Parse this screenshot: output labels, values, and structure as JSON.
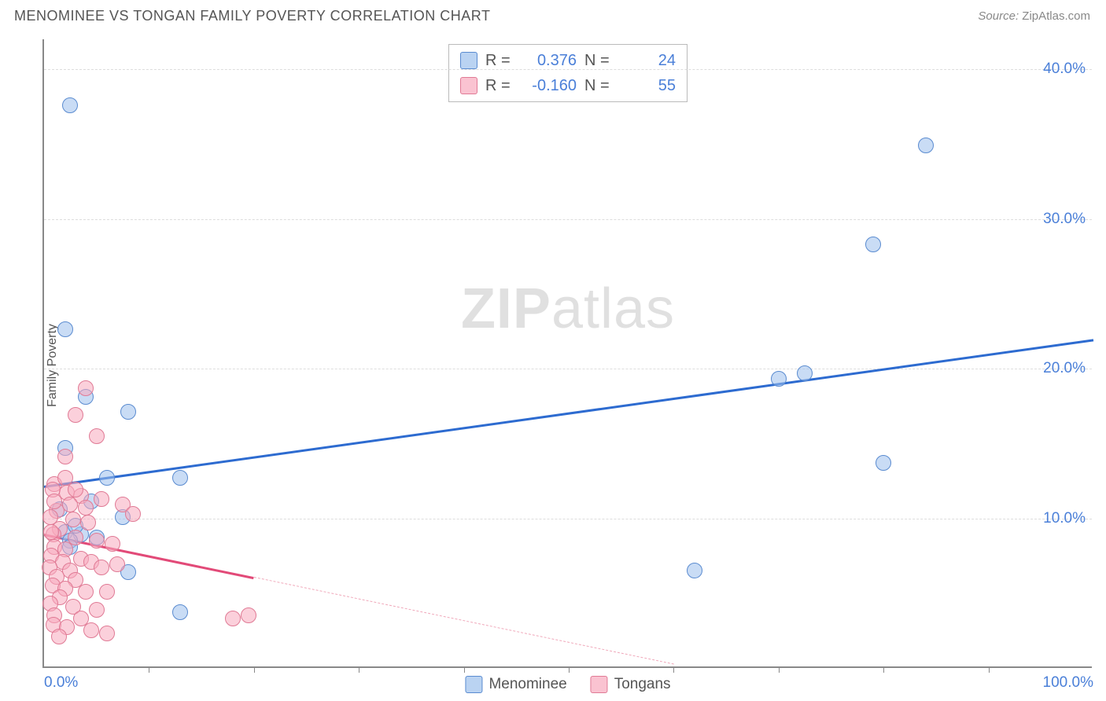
{
  "title": "MENOMINEE VS TONGAN FAMILY POVERTY CORRELATION CHART",
  "source_label": "Source:",
  "source_name": "ZipAtlas.com",
  "ylabel": "Family Poverty",
  "watermark": {
    "bold": "ZIP",
    "rest": "atlas"
  },
  "chart": {
    "type": "scatter",
    "xlim": [
      0,
      100
    ],
    "ylim": [
      0,
      42
    ],
    "y_ticks": [
      10,
      20,
      30,
      40
    ],
    "y_tick_labels": [
      "10.0%",
      "20.0%",
      "30.0%",
      "40.0%"
    ],
    "x_minor_ticks": [
      10,
      20,
      30,
      40,
      50,
      60,
      70,
      80,
      90
    ],
    "x_end_labels": [
      "0.0%",
      "100.0%"
    ],
    "grid_color": "#dddddd",
    "axis_color": "#888888",
    "tick_label_color": "#4a7fd8",
    "background_color": "#ffffff",
    "point_radius": 10,
    "series": [
      {
        "key": "a",
        "name": "Menominee",
        "fill": "rgba(156,192,236,0.55)",
        "stroke": "#5a8bd0",
        "R": "0.376",
        "N": "24",
        "points": [
          [
            2.5,
            37.5
          ],
          [
            2.0,
            22.5
          ],
          [
            84.0,
            34.8
          ],
          [
            79.0,
            28.2
          ],
          [
            70.0,
            19.2
          ],
          [
            72.5,
            19.6
          ],
          [
            80.0,
            13.6
          ],
          [
            62.0,
            6.4
          ],
          [
            4.0,
            18.0
          ],
          [
            8.0,
            17.0
          ],
          [
            2.0,
            14.6
          ],
          [
            6.0,
            12.6
          ],
          [
            13.0,
            12.6
          ],
          [
            4.5,
            11.0
          ],
          [
            1.5,
            10.5
          ],
          [
            7.5,
            10.0
          ],
          [
            2.0,
            9.0
          ],
          [
            3.5,
            8.8
          ],
          [
            5.0,
            8.6
          ],
          [
            2.5,
            8.4
          ],
          [
            8.0,
            6.3
          ],
          [
            13.0,
            3.6
          ],
          [
            2.5,
            8.0
          ],
          [
            3.0,
            9.4
          ]
        ],
        "regression": {
          "x1": 0,
          "y1": 12.2,
          "x2": 100,
          "y2": 22.0,
          "solid_end_x": 100
        }
      },
      {
        "key": "b",
        "name": "Tongans",
        "fill": "rgba(248,170,190,0.55)",
        "stroke": "#e07a95",
        "R": "-0.160",
        "N": "55",
        "points": [
          [
            4.0,
            18.6
          ],
          [
            3.0,
            16.8
          ],
          [
            5.0,
            15.4
          ],
          [
            2.0,
            14.0
          ],
          [
            1.0,
            12.2
          ],
          [
            0.8,
            11.8
          ],
          [
            2.2,
            11.6
          ],
          [
            3.5,
            11.4
          ],
          [
            5.5,
            11.2
          ],
          [
            7.5,
            10.8
          ],
          [
            1.2,
            10.4
          ],
          [
            0.6,
            10.0
          ],
          [
            2.8,
            9.8
          ],
          [
            4.2,
            9.6
          ],
          [
            1.5,
            9.2
          ],
          [
            0.9,
            8.8
          ],
          [
            3.0,
            8.6
          ],
          [
            5.0,
            8.4
          ],
          [
            6.5,
            8.2
          ],
          [
            8.5,
            10.2
          ],
          [
            1.0,
            8.0
          ],
          [
            2.0,
            7.8
          ],
          [
            0.7,
            7.4
          ],
          [
            3.5,
            7.2
          ],
          [
            1.8,
            7.0
          ],
          [
            4.5,
            7.0
          ],
          [
            0.5,
            6.6
          ],
          [
            2.5,
            6.4
          ],
          [
            5.5,
            6.6
          ],
          [
            7.0,
            6.8
          ],
          [
            1.2,
            6.0
          ],
          [
            3.0,
            5.8
          ],
          [
            0.8,
            5.4
          ],
          [
            2.0,
            5.2
          ],
          [
            4.0,
            5.0
          ],
          [
            6.0,
            5.0
          ],
          [
            1.5,
            4.6
          ],
          [
            0.6,
            4.2
          ],
          [
            2.8,
            4.0
          ],
          [
            5.0,
            3.8
          ],
          [
            1.0,
            3.4
          ],
          [
            3.5,
            3.2
          ],
          [
            0.9,
            2.8
          ],
          [
            2.2,
            2.6
          ],
          [
            4.5,
            2.4
          ],
          [
            6.0,
            2.2
          ],
          [
            1.4,
            2.0
          ],
          [
            18.0,
            3.2
          ],
          [
            19.5,
            3.4
          ],
          [
            3.0,
            11.8
          ],
          [
            4.0,
            10.6
          ],
          [
            2.0,
            12.6
          ],
          [
            1.0,
            11.0
          ],
          [
            0.7,
            9.0
          ],
          [
            2.5,
            10.8
          ]
        ],
        "regression": {
          "x1": 0,
          "y1": 9.0,
          "x2": 60,
          "y2": 0.3,
          "solid_end_x": 20
        }
      }
    ]
  },
  "legend_top": {
    "rows": [
      {
        "swatch": "a",
        "r_label": "R =",
        "r_val": "0.376",
        "n_label": "N =",
        "n_val": "24"
      },
      {
        "swatch": "b",
        "r_label": "R =",
        "r_val": "-0.160",
        "n_label": "N =",
        "n_val": "55"
      }
    ]
  },
  "legend_bottom": [
    {
      "swatch": "a",
      "label": "Menominee"
    },
    {
      "swatch": "b",
      "label": "Tongans"
    }
  ]
}
